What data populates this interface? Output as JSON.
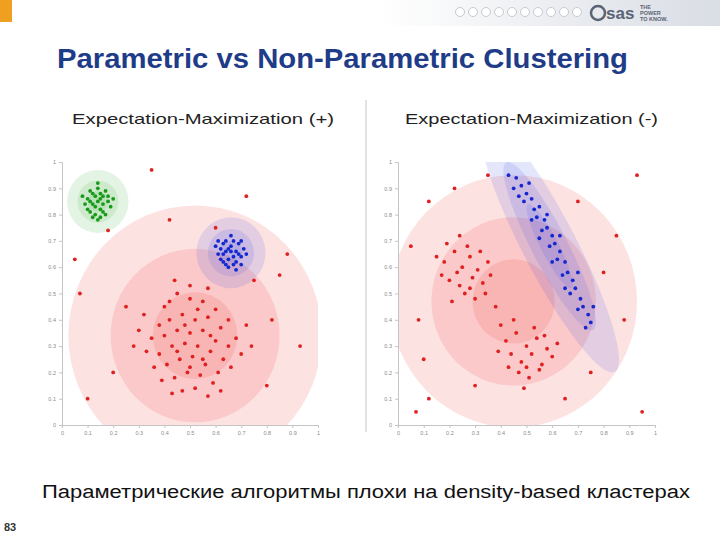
{
  "header": {
    "title": "Parametric vs Non-Parametric Clustering",
    "logo": "sas",
    "tagline": [
      "THE",
      "POWER",
      "TO KNOW."
    ]
  },
  "footer": {
    "caption": "Параметрические алгоритмы плохи на density-based кластерах",
    "page": 83
  },
  "chart_data": [
    {
      "type": "scatter",
      "title": "Expectation-Maximization (+)",
      "xlim": [
        0,
        1
      ],
      "ylim": [
        0,
        1
      ],
      "xticks": [
        0,
        0.1,
        0.2,
        0.3,
        0.4,
        0.5,
        0.6,
        0.7,
        0.8,
        0.9,
        1
      ],
      "yticks": [
        0,
        0.1,
        0.2,
        0.3,
        0.4,
        0.5,
        0.6,
        0.7,
        0.8,
        0.9,
        1
      ],
      "components": [
        {
          "color": "#f03c3c",
          "mean": [
            0.52,
            0.34
          ],
          "sd": [
            0.165,
            0.165
          ],
          "corr": 0
        },
        {
          "color": "#4a5ae6",
          "mean": [
            0.66,
            0.655
          ],
          "sd": [
            0.045,
            0.045
          ],
          "corr": 0
        },
        {
          "color": "#4cb84c",
          "mean": [
            0.14,
            0.85
          ],
          "sd": [
            0.04,
            0.04
          ],
          "corr": 0
        }
      ],
      "series": [
        {
          "color": "#e02020",
          "x": [
            0.4,
            0.45,
            0.5,
            0.55,
            0.6,
            0.65,
            0.38,
            0.42,
            0.47,
            0.52,
            0.57,
            0.62,
            0.68,
            0.35,
            0.4,
            0.45,
            0.5,
            0.55,
            0.6,
            0.65,
            0.33,
            0.38,
            0.43,
            0.48,
            0.53,
            0.58,
            0.63,
            0.7,
            0.36,
            0.41,
            0.46,
            0.51,
            0.56,
            0.61,
            0.66,
            0.39,
            0.44,
            0.49,
            0.54,
            0.59,
            0.47,
            0.52,
            0.57,
            0.43,
            0.62,
            0.5,
            0.57,
            0.44,
            0.3,
            0.28,
            0.72,
            0.74,
            0.32,
            0.53,
            0.48,
            0.58,
            0.45,
            0.55,
            0.5,
            0.42,
            0.05,
            0.07,
            0.18,
            0.35,
            0.42,
            0.72,
            0.75,
            0.85,
            0.88,
            0.93,
            0.8,
            0.2,
            0.1,
            0.25,
            0.6,
            0.82
          ],
          "values": [
            0.45,
            0.5,
            0.48,
            0.47,
            0.44,
            0.4,
            0.38,
            0.4,
            0.42,
            0.4,
            0.41,
            0.37,
            0.33,
            0.33,
            0.34,
            0.36,
            0.35,
            0.36,
            0.32,
            0.3,
            0.28,
            0.27,
            0.3,
            0.31,
            0.3,
            0.28,
            0.25,
            0.27,
            0.22,
            0.23,
            0.25,
            0.26,
            0.23,
            0.2,
            0.22,
            0.17,
            0.18,
            0.2,
            0.19,
            0.16,
            0.13,
            0.14,
            0.11,
            0.12,
            0.13,
            0.53,
            0.52,
            0.55,
            0.36,
            0.3,
            0.38,
            0.3,
            0.42,
            0.44,
            0.38,
            0.34,
            0.28,
            0.25,
            0.22,
            0.47,
            0.63,
            0.5,
            0.74,
            0.97,
            0.78,
            0.87,
            0.55,
            0.57,
            0.65,
            0.3,
            0.15,
            0.2,
            0.1,
            0.45,
            0.75,
            0.4
          ]
        },
        {
          "color": "#1428d0",
          "x": [
            0.62,
            0.64,
            0.66,
            0.68,
            0.7,
            0.65,
            0.63,
            0.67,
            0.69,
            0.61,
            0.66,
            0.71,
            0.64,
            0.67,
            0.6,
            0.65,
            0.68,
            0.63,
            0.7,
            0.66,
            0.62,
            0.69,
            0.64,
            0.72,
            0.67,
            0.65,
            0.61,
            0.68,
            0.63,
            0.7
          ],
          "values": [
            0.67,
            0.7,
            0.68,
            0.66,
            0.64,
            0.63,
            0.62,
            0.61,
            0.69,
            0.65,
            0.72,
            0.67,
            0.66,
            0.64,
            0.68,
            0.6,
            0.62,
            0.69,
            0.61,
            0.66,
            0.63,
            0.65,
            0.61,
            0.65,
            0.7,
            0.67,
            0.7,
            0.59,
            0.65,
            0.7
          ]
        },
        {
          "color": "#1a9a1a",
          "x": [
            0.1,
            0.12,
            0.14,
            0.16,
            0.18,
            0.13,
            0.11,
            0.15,
            0.17,
            0.12,
            0.14,
            0.16,
            0.09,
            0.1,
            0.13,
            0.15,
            0.19,
            0.14,
            0.17,
            0.11,
            0.13,
            0.16,
            0.12,
            0.15,
            0.18,
            0.08,
            0.14,
            0.2,
            0.11,
            0.15
          ],
          "values": [
            0.86,
            0.88,
            0.9,
            0.87,
            0.85,
            0.83,
            0.81,
            0.82,
            0.8,
            0.79,
            0.85,
            0.84,
            0.84,
            0.82,
            0.87,
            0.88,
            0.83,
            0.78,
            0.89,
            0.85,
            0.8,
            0.81,
            0.84,
            0.86,
            0.87,
            0.87,
            0.92,
            0.86,
            0.89,
            0.79
          ]
        }
      ]
    },
    {
      "type": "scatter",
      "title": "Expectation-Maximization (-)",
      "xlim": [
        0,
        1
      ],
      "ylim": [
        0,
        1
      ],
      "xticks": [
        0,
        0.1,
        0.2,
        0.3,
        0.4,
        0.5,
        0.6,
        0.7,
        0.8,
        0.9,
        1
      ],
      "yticks": [
        0,
        0.1,
        0.2,
        0.3,
        0.4,
        0.5,
        0.6,
        0.7,
        0.8,
        0.9,
        1
      ],
      "components": [
        {
          "color": "#f03c3c",
          "mean": [
            0.45,
            0.47
          ],
          "sd": [
            0.16,
            0.16
          ],
          "corr": 0
        },
        {
          "color": "#4a5ae6",
          "mean": [
            0.59,
            0.68
          ],
          "sd": [
            0.09,
            0.16
          ],
          "corr": -0.9
        }
      ],
      "series": [
        {
          "color": "#e02020",
          "x": [
            0.18,
            0.22,
            0.25,
            0.28,
            0.31,
            0.2,
            0.24,
            0.29,
            0.33,
            0.27,
            0.19,
            0.23,
            0.35,
            0.26,
            0.3,
            0.21,
            0.17,
            0.32,
            0.36,
            0.28,
            0.15,
            0.24,
            0.34,
            0.38,
            0.42,
            0.46,
            0.5,
            0.54,
            0.58,
            0.44,
            0.48,
            0.52,
            0.56,
            0.6,
            0.47,
            0.51,
            0.55,
            0.43,
            0.4,
            0.45,
            0.53,
            0.49,
            0.57,
            0.62,
            0.39,
            0.5,
            0.05,
            0.08,
            0.1,
            0.12,
            0.22,
            0.35,
            0.7,
            0.8,
            0.85,
            0.88,
            0.75,
            0.95,
            0.12,
            0.65,
            0.3,
            0.93,
            0.07
          ],
          "values": [
            0.62,
            0.66,
            0.6,
            0.64,
            0.59,
            0.55,
            0.53,
            0.56,
            0.54,
            0.68,
            0.69,
            0.58,
            0.62,
            0.5,
            0.48,
            0.47,
            0.57,
            0.66,
            0.57,
            0.52,
            0.64,
            0.72,
            0.5,
            0.45,
            0.32,
            0.35,
            0.3,
            0.33,
            0.29,
            0.27,
            0.24,
            0.27,
            0.23,
            0.26,
            0.2,
            0.18,
            0.21,
            0.22,
            0.38,
            0.4,
            0.37,
            0.14,
            0.34,
            0.31,
            0.28,
            0.22,
            0.68,
            0.4,
            0.25,
            0.85,
            0.9,
            0.95,
            0.85,
            0.58,
            0.72,
            0.4,
            0.2,
            0.05,
            0.1,
            0.1,
            0.15,
            0.95,
            0.05
          ]
        },
        {
          "color": "#1428d0",
          "x": [
            0.43,
            0.46,
            0.45,
            0.48,
            0.5,
            0.49,
            0.52,
            0.53,
            0.55,
            0.54,
            0.57,
            0.58,
            0.56,
            0.6,
            0.61,
            0.59,
            0.63,
            0.62,
            0.65,
            0.66,
            0.64,
            0.68,
            0.69,
            0.67,
            0.71,
            0.72,
            0.7,
            0.74,
            0.75,
            0.73,
            0.51,
            0.47,
            0.58,
            0.55,
            0.63,
            0.6,
            0.7,
            0.65,
            0.76,
            0.52
          ],
          "values": [
            0.95,
            0.94,
            0.9,
            0.91,
            0.88,
            0.85,
            0.86,
            0.82,
            0.83,
            0.79,
            0.78,
            0.75,
            0.74,
            0.72,
            0.69,
            0.68,
            0.66,
            0.63,
            0.62,
            0.58,
            0.57,
            0.55,
            0.52,
            0.5,
            0.48,
            0.45,
            0.44,
            0.42,
            0.39,
            0.37,
            0.92,
            0.87,
            0.8,
            0.71,
            0.72,
            0.62,
            0.58,
            0.52,
            0.45,
            0.78
          ]
        }
      ]
    }
  ]
}
